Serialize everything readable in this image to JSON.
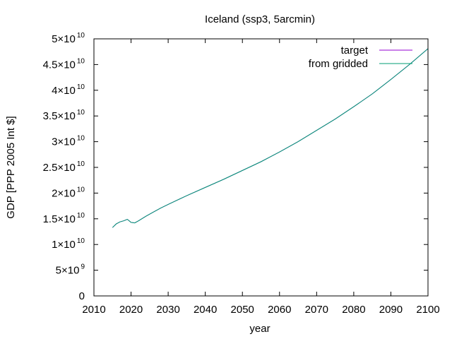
{
  "chart_data": {
    "type": "line",
    "title": "Iceland (ssp3, 5arcmin)",
    "xlabel": "year",
    "ylabel": "GDP [PPP 2005 Int $]",
    "xlim": [
      2010,
      2100
    ],
    "ylim": [
      0,
      50000000000
    ],
    "grid": false,
    "legend_position": "top-right",
    "x_ticks": [
      {
        "value": 2010,
        "label": "2010"
      },
      {
        "value": 2020,
        "label": "2020"
      },
      {
        "value": 2030,
        "label": "2030"
      },
      {
        "value": 2040,
        "label": "2040"
      },
      {
        "value": 2050,
        "label": "2050"
      },
      {
        "value": 2060,
        "label": "2060"
      },
      {
        "value": 2070,
        "label": "2070"
      },
      {
        "value": 2080,
        "label": "2080"
      },
      {
        "value": 2090,
        "label": "2090"
      },
      {
        "value": 2100,
        "label": "2100"
      }
    ],
    "y_ticks": [
      {
        "value": 0,
        "label": "0",
        "mant": "0",
        "exp": ""
      },
      {
        "value": 5000000000,
        "label": "5×10^9",
        "mant": "5×10",
        "exp": "9"
      },
      {
        "value": 10000000000,
        "label": "1×10^10",
        "mant": "1×10",
        "exp": "10"
      },
      {
        "value": 15000000000,
        "label": "1.5×10^10",
        "mant": "1.5×10",
        "exp": "10"
      },
      {
        "value": 20000000000,
        "label": "2×10^10",
        "mant": "2×10",
        "exp": "10"
      },
      {
        "value": 25000000000,
        "label": "2.5×10^10",
        "mant": "2.5×10",
        "exp": "10"
      },
      {
        "value": 30000000000,
        "label": "3×10^10",
        "mant": "3×10",
        "exp": "10"
      },
      {
        "value": 35000000000,
        "label": "3.5×10^10",
        "mant": "3.5×10",
        "exp": "10"
      },
      {
        "value": 40000000000,
        "label": "4×10^10",
        "mant": "4×10",
        "exp": "10"
      },
      {
        "value": 45000000000,
        "label": "4.5×10^10",
        "mant": "4.5×10",
        "exp": "10"
      },
      {
        "value": 50000000000,
        "label": "5×10^10",
        "mant": "5×10",
        "exp": "10"
      }
    ],
    "x": [
      2015,
      2016,
      2017,
      2018,
      2019,
      2020,
      2021,
      2022,
      2024,
      2026,
      2028,
      2030,
      2035,
      2040,
      2045,
      2050,
      2055,
      2060,
      2065,
      2070,
      2075,
      2080,
      2085,
      2090,
      2095,
      2100
    ],
    "series": [
      {
        "name": "target",
        "color": "#9400d3",
        "values": [
          13300000000.0,
          14000000000.0,
          14400000000.0,
          14600000000.0,
          14900000000.0,
          14300000000.0,
          14200000000.0,
          14600000000.0,
          15500000000.0,
          16300000000.0,
          17100000000.0,
          17800000000.0,
          19500000000.0,
          21100000000.0,
          22700000000.0,
          24400000000.0,
          26100000000.0,
          28000000000.0,
          30000000000.0,
          32200000000.0,
          34400000000.0,
          36800000000.0,
          39300000000.0,
          42100000000.0,
          45000000000.0,
          48100000000.0
        ]
      },
      {
        "name": "from gridded",
        "color": "#009e73",
        "values": [
          13300000000.0,
          14000000000.0,
          14400000000.0,
          14600000000.0,
          14900000000.0,
          14300000000.0,
          14200000000.0,
          14600000000.0,
          15500000000.0,
          16300000000.0,
          17100000000.0,
          17800000000.0,
          19500000000.0,
          21100000000.0,
          22700000000.0,
          24400000000.0,
          26100000000.0,
          28000000000.0,
          30000000000.0,
          32200000000.0,
          34400000000.0,
          36800000000.0,
          39300000000.0,
          42100000000.0,
          45000000000.0,
          48100000000.0
        ]
      }
    ]
  }
}
